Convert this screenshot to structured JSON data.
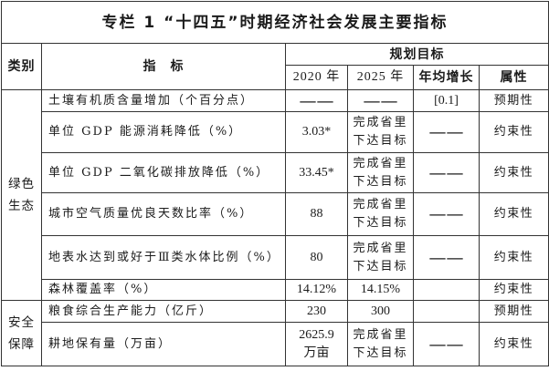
{
  "title": "专栏 1 “十四五”时期经济社会发展主要指标",
  "header": {
    "category": "类别",
    "indicator": "指　标",
    "plan_target": "规划目标",
    "year_2020": "2020 年",
    "year_2025": "2025 年",
    "annual_growth": "年均增长",
    "attribute": "属性"
  },
  "groups": [
    {
      "category": "绿色\n生态",
      "rows": [
        {
          "indicator": "土壤有机质含量增加（个百分点）",
          "year_2020": "——",
          "year_2025": "——",
          "annual_growth": "[0.1]",
          "attribute": "预期性"
        },
        {
          "indicator": "单位 GDP 能源消耗降低（%）",
          "year_2020": "3.03*",
          "year_2025": "完成省里\n下达目标",
          "annual_growth": "——",
          "attribute": "约束性"
        },
        {
          "indicator": "单位 GDP 二氧化碳排放降低（%）",
          "year_2020": "33.45*",
          "year_2025": "完成省里\n下达目标",
          "annual_growth": "——",
          "attribute": "约束性"
        },
        {
          "indicator": "城市空气质量优良天数比率（%）",
          "year_2020": "88",
          "year_2025": "完成省里\n下达目标",
          "annual_growth": "——",
          "attribute": "约束性"
        },
        {
          "indicator": "地表水达到或好于Ⅲ类水体比例（%）",
          "year_2020": "80",
          "year_2025": "完成省里\n下达目标",
          "annual_growth": "——",
          "attribute": "约束性"
        },
        {
          "indicator": "森林覆盖率（%）",
          "year_2020": "14.12%",
          "year_2025": "14.15%",
          "attribute": "约束性"
        }
      ]
    },
    {
      "category": "安全\n保障",
      "rows": [
        {
          "indicator": "粮食综合生产能力（亿斤）",
          "year_2020": "230",
          "year_2025": "300",
          "attribute": "预期性"
        },
        {
          "indicator": "耕地保有量（万亩）",
          "year_2020": "2625.9\n万亩",
          "year_2025": "完成省里\n下达目标",
          "annual_growth": "——",
          "attribute": "约束性"
        }
      ]
    }
  ]
}
